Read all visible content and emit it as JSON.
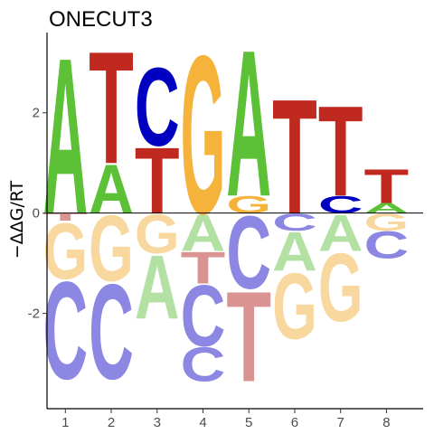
{
  "chart_data": {
    "type": "sequence-logo",
    "title": "ONECUT3",
    "ylabel": "−ΔΔG/RT",
    "xlabel": "",
    "ylim": [
      -3.9,
      3.6
    ],
    "yticks": [
      -2,
      0,
      2
    ],
    "ytick_labels": [
      "-2",
      "0",
      "2"
    ],
    "positions": [
      1,
      2,
      3,
      4,
      5,
      6,
      7,
      8
    ],
    "position_labels": [
      "1",
      "2",
      "3",
      "4",
      "5",
      "6",
      "7",
      "8"
    ],
    "letter_colors": {
      "A_pos": "#5cc136",
      "C_pos": "#0000c0",
      "G_pos": "#f5b33c",
      "T_pos": "#c0291f",
      "A_neg": "#b3e0a3",
      "C_neg": "#8c87e3",
      "G_neg": "#f8d89e",
      "T_neg": "#d99390"
    },
    "columns": [
      {
        "position": 1,
        "positive": [
          {
            "letter": "A",
            "height": 3.2
          }
        ],
        "negative": [
          {
            "letter": "T",
            "height": 0.15
          },
          {
            "letter": "G",
            "height": 1.15
          },
          {
            "letter": "C",
            "height": 2.0
          }
        ]
      },
      {
        "position": 2,
        "positive": [
          {
            "letter": "A",
            "height": 1.0
          },
          {
            "letter": "T",
            "height": 2.3
          }
        ],
        "negative": [
          {
            "letter": "G",
            "height": 1.35
          },
          {
            "letter": "C",
            "height": 1.95
          }
        ]
      },
      {
        "position": 3,
        "positive": [
          {
            "letter": "T",
            "height": 1.35
          },
          {
            "letter": "C",
            "height": 1.6
          }
        ],
        "negative": [
          {
            "letter": "G",
            "height": 0.8
          },
          {
            "letter": "A",
            "height": 1.3
          }
        ]
      },
      {
        "position": 4,
        "positive": [
          {
            "letter": "G",
            "height": 3.25
          }
        ],
        "negative": [
          {
            "letter": "A",
            "height": 0.75
          },
          {
            "letter": "T",
            "height": 0.65
          },
          {
            "letter": "C",
            "height": 1.25
          },
          {
            "letter": "C",
            "height": 0.7
          }
        ]
      },
      {
        "position": 5,
        "positive": [
          {
            "letter": "G",
            "height": 0.35
          },
          {
            "letter": "A",
            "height": 3.0
          }
        ],
        "negative": [
          {
            "letter": "C",
            "height": 1.5
          },
          {
            "letter": "T",
            "height": 1.85
          }
        ]
      },
      {
        "position": 6,
        "positive": [
          {
            "letter": "T",
            "height": 2.35
          }
        ],
        "negative": [
          {
            "letter": "C",
            "height": 0.35
          },
          {
            "letter": "A",
            "height": 0.8
          },
          {
            "letter": "G",
            "height": 1.35
          }
        ]
      },
      {
        "position": 7,
        "positive": [
          {
            "letter": "C",
            "height": 0.35
          },
          {
            "letter": "T",
            "height": 1.85
          }
        ],
        "negative": [
          {
            "letter": "A",
            "height": 0.75
          },
          {
            "letter": "G",
            "height": 1.4
          }
        ]
      },
      {
        "position": 8,
        "positive": [
          {
            "letter": "A",
            "height": 0.2
          },
          {
            "letter": "T",
            "height": 0.7
          }
        ],
        "negative": [
          {
            "letter": "G",
            "height": 0.35
          },
          {
            "letter": "C",
            "height": 0.55
          }
        ]
      }
    ]
  }
}
